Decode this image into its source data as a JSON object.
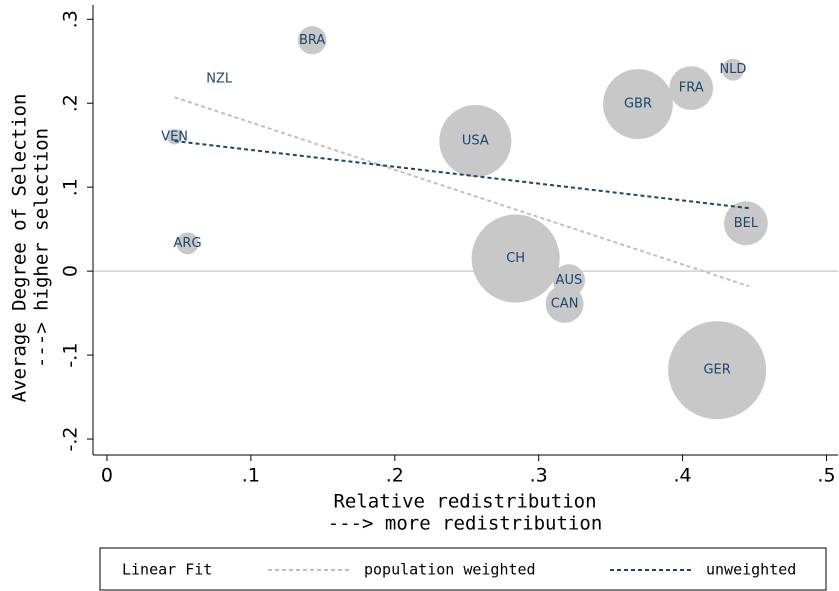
{
  "chart_data": {
    "type": "bubble",
    "x_label": "Relative redistribution",
    "x_label_2": "---> more redistribution",
    "y_label": "Average Degree of Selection",
    "y_label_2": "---> higher selection",
    "xlim": [
      -0.0097,
      0.508
    ],
    "ylim": [
      -0.219,
      0.317
    ],
    "xticks": [
      0,
      {
        "value": 0.1,
        "label": ".1"
      },
      {
        "value": 0.2,
        "label": ".2"
      },
      {
        "value": 0.3,
        "label": ".3"
      },
      {
        "value": 0.4,
        "label": ".4"
      },
      {
        "value": 0.5,
        "label": ".5"
      }
    ],
    "yticks": [
      {
        "value": -0.2,
        "label": "-.2"
      },
      {
        "value": -0.1,
        "label": "-.1"
      },
      0,
      {
        "value": 0.1,
        "label": ".1"
      },
      {
        "value": 0.2,
        "label": ".2"
      },
      {
        "value": 0.3,
        "label": ".3"
      }
    ],
    "reference_line": 0,
    "points": {
      "color": "#c8c8c8",
      "label_color": "#1a476f",
      "labels": [
        "BRA",
        "NZL",
        "VEN",
        "ARG",
        "USA",
        "CH",
        "AUS",
        "CAN",
        "GBR",
        "FRA",
        "NLD",
        "BEL",
        "GER"
      ],
      "x": [
        0.1426,
        0.078,
        0.047,
        0.056,
        0.256,
        0.284,
        0.321,
        0.318,
        0.369,
        0.406,
        0.435,
        0.444,
        0.424
      ],
      "y": [
        0.275,
        0.229,
        0.16,
        0.033,
        0.155,
        0.015,
        -0.011,
        -0.039,
        0.199,
        0.218,
        0.24,
        0.057,
        -0.118
      ],
      "sizes": [
        2,
        0,
        0.6,
        1.2,
        13,
        19.4,
        2.6,
        3.6,
        12.2,
        4.8,
        1.2,
        4.8,
        24
      ]
    },
    "legend_title": "Linear Fit",
    "series": [
      {
        "name": "population weighted",
        "color": "#c0c0c0",
        "x": [
          0.047,
          0.446
        ],
        "values": [
          0.207,
          -0.018
        ]
      },
      {
        "name": "unweighted",
        "color": "#1a476f",
        "x": [
          0.047,
          0.446
        ],
        "values": [
          0.155,
          0.075
        ]
      }
    ]
  }
}
